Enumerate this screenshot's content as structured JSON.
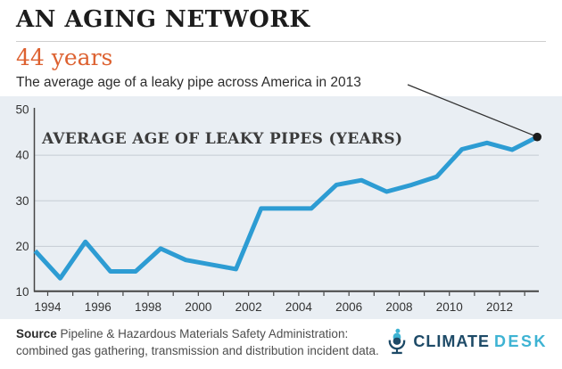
{
  "header": {
    "title": "AN AGING NETWORK",
    "stat": "44 years",
    "description": "The average age of a leaky pipe across America in 2013"
  },
  "chart_data": {
    "type": "line",
    "title": "AVERAGE AGE OF LEAKY PIPES (YEARS)",
    "x": [
      1993,
      1994,
      1995,
      1996,
      1997,
      1998,
      1999,
      2000,
      2001,
      2002,
      2003,
      2004,
      2005,
      2006,
      2007,
      2008,
      2009,
      2010,
      2011,
      2012,
      2013
    ],
    "values": [
      19,
      13,
      21,
      14.5,
      14.5,
      19.5,
      17,
      16,
      15,
      28.3,
      28.3,
      28.3,
      33.5,
      34.5,
      32,
      33.5,
      35.3,
      41.3,
      42.7,
      41.2,
      44
    ],
    "ylim": [
      10,
      50
    ],
    "yticks": [
      10,
      20,
      30,
      40,
      50
    ],
    "gridlines_at": [
      20,
      30,
      40
    ],
    "xtick_years_all_from": 1994,
    "xtick_years_all_to": 2013,
    "xtick_labels": [
      "1994",
      "1996",
      "1998",
      "2000",
      "2002",
      "2004",
      "2006",
      "2008",
      "2010",
      "2012"
    ],
    "legend": "none",
    "annotation": {
      "target_year": 2013,
      "target_value": 44
    }
  },
  "footer": {
    "source_label": "Source",
    "source_line1": "Pipeline & Hazardous Materials Safety Administration:",
    "source_line2": "combined gas gathering, transmission and distribution incident data.",
    "logo": {
      "icon": "microphone-icon",
      "word1": "CLIMATE",
      "word2": "DESK"
    }
  },
  "colors": {
    "accent_orange": "#dd6130",
    "line_blue": "#2d9cd3",
    "chart_bg": "#e9eef3",
    "gridline": "#c5ccd3",
    "axis": "#454545",
    "marker_dot": "#1b1b1b",
    "annotation_line": "#333333",
    "logo_dark": "#1d4a67",
    "logo_teal": "#3eb3d3"
  }
}
